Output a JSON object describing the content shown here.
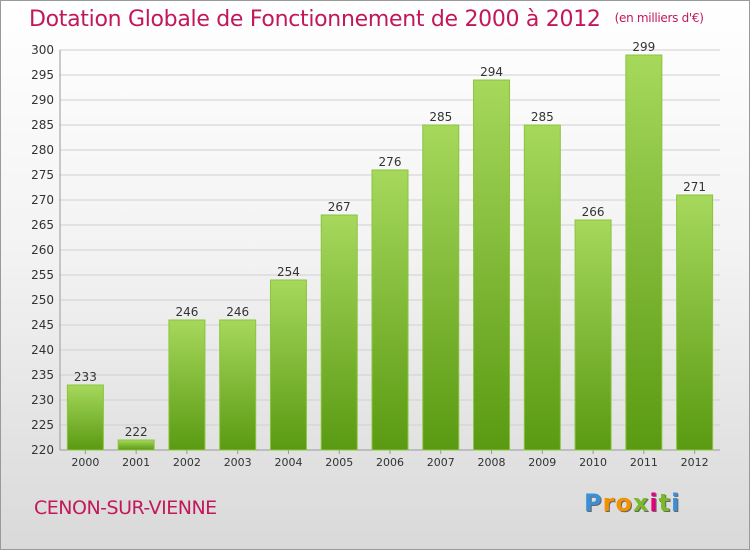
{
  "title": "Dotation Globale de Fonctionnement de 2000 à 2012",
  "subtitle": "(en milliers d'€)",
  "commune": "CENON-SUR-VIENNE",
  "logo": {
    "letters": [
      "P",
      "r",
      "o",
      "x",
      "i",
      "t",
      "i"
    ],
    "colors": [
      "#3a8fd6",
      "#f39200",
      "#f39200",
      "#7ab929",
      "#e4007c",
      "#7ab929",
      "#3a8fd6"
    ]
  },
  "colors": {
    "title": "#c2185b",
    "bar_light": "#a6d85c",
    "bar_dark": "#5a9a12",
    "grid": "#d0d0d0"
  },
  "chart_data": {
    "type": "bar",
    "categories": [
      "2000",
      "2001",
      "2002",
      "2003",
      "2004",
      "2005",
      "2006",
      "2007",
      "2008",
      "2009",
      "2010",
      "2011",
      "2012"
    ],
    "values": [
      233,
      222,
      246,
      246,
      254,
      267,
      276,
      285,
      294,
      285,
      266,
      299,
      271
    ],
    "ylim": [
      220,
      300
    ],
    "yticks": [
      220,
      225,
      230,
      235,
      240,
      245,
      250,
      255,
      260,
      265,
      270,
      275,
      280,
      285,
      290,
      295,
      300
    ],
    "grid": true,
    "value_labels": true
  }
}
